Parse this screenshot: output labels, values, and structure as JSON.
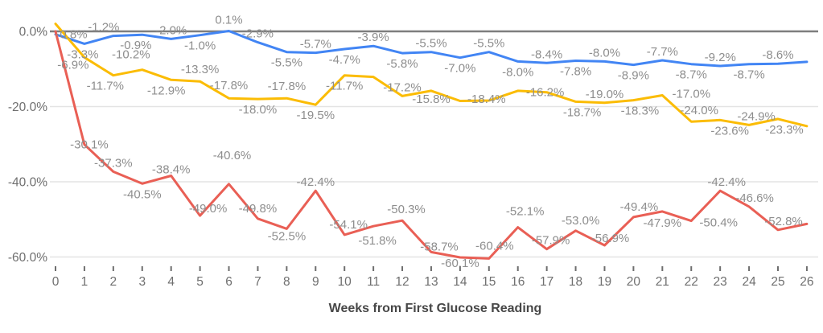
{
  "chart_data": {
    "type": "line",
    "title": "",
    "xlabel": "Weeks from First Glucose Reading",
    "ylabel": "",
    "legend": "none",
    "grid": "horizontal",
    "x_range": [
      0,
      26
    ],
    "ylim": [
      -64,
      3
    ],
    "x_ticks": [
      "0",
      "1",
      "2",
      "3",
      "4",
      "5",
      "6",
      "7",
      "8",
      "9",
      "10",
      "11",
      "12",
      "13",
      "14",
      "15",
      "16",
      "17",
      "18",
      "19",
      "20",
      "21",
      "22",
      "23",
      "24",
      "25",
      "26"
    ],
    "y_ticks": [
      {
        "label": "0.0%",
        "value": 0
      },
      {
        "label": "-20.0%",
        "value": -20
      },
      {
        "label": "-40.0%",
        "value": -40
      },
      {
        "label": "-60.0%",
        "value": -60
      }
    ],
    "series": [
      {
        "name": "blue-series",
        "color": "#4285F4",
        "values": [
          -0.8,
          -3.3,
          -1.2,
          -0.9,
          -2.0,
          -1.0,
          0.1,
          -2.9,
          -5.5,
          -5.7,
          -4.7,
          -3.9,
          -5.8,
          -5.5,
          -7.0,
          -5.5,
          -8.0,
          -8.4,
          -7.8,
          -8.0,
          -8.9,
          -7.7,
          -8.7,
          -9.2,
          -8.7,
          -8.6,
          -8.1
        ],
        "labels": [
          {
            "w": 0,
            "t": "-0.8%",
            "p": "o",
            "dx": 20
          },
          {
            "w": 1,
            "t": "-3.3%",
            "p": "b",
            "dx": -2
          },
          {
            "w": 2,
            "t": "-1.2%",
            "p": "a",
            "dx": -12
          },
          {
            "w": 3,
            "t": "-0.9%",
            "p": "b",
            "dx": -8
          },
          {
            "w": 4,
            "t": "-2.0%",
            "p": "a"
          },
          {
            "w": 5,
            "t": "-1.0%",
            "p": "b"
          },
          {
            "w": 6,
            "t": "0.1%",
            "p": "a",
            "dy": -3
          },
          {
            "w": 7,
            "t": "-2.9%",
            "p": "a"
          },
          {
            "w": 8,
            "t": "-5.5%",
            "p": "b"
          },
          {
            "w": 9,
            "t": "-5.7%",
            "p": "a"
          },
          {
            "w": 10,
            "t": "-4.7%",
            "p": "b"
          },
          {
            "w": 11,
            "t": "-3.9%",
            "p": "a"
          },
          {
            "w": 12,
            "t": "-5.8%",
            "p": "b"
          },
          {
            "w": 13,
            "t": "-5.5%",
            "p": "a"
          },
          {
            "w": 14,
            "t": "-7.0%",
            "p": "b"
          },
          {
            "w": 15,
            "t": "-5.5%",
            "p": "a"
          },
          {
            "w": 16,
            "t": "-8.0%",
            "p": "b"
          },
          {
            "w": 17,
            "t": "-8.4%",
            "p": "a"
          },
          {
            "w": 18,
            "t": "-7.8%",
            "p": "b"
          },
          {
            "w": 19,
            "t": "-8.0%",
            "p": "a"
          },
          {
            "w": 20,
            "t": "-8.9%",
            "p": "b"
          },
          {
            "w": 21,
            "t": "-7.7%",
            "p": "a"
          },
          {
            "w": 22,
            "t": "-8.7%",
            "p": "b"
          },
          {
            "w": 23,
            "t": "-9.2%",
            "p": "a"
          },
          {
            "w": 24,
            "t": "-8.7%",
            "p": "b"
          },
          {
            "w": 25,
            "t": "-8.6%",
            "p": "a"
          }
        ]
      },
      {
        "name": "yellow-series",
        "color": "#FBBC04",
        "values": [
          2.0,
          -6.9,
          -11.7,
          -10.2,
          -12.9,
          -13.3,
          -17.8,
          -18.0,
          -17.8,
          -19.5,
          -11.7,
          -12.1,
          -17.2,
          -15.8,
          -18.5,
          -18.4,
          -15.8,
          -16.2,
          -18.7,
          -19.0,
          -18.3,
          -17.0,
          -24.0,
          -23.6,
          -24.9,
          -23.3,
          -25.2
        ],
        "labels": [
          {
            "w": 1,
            "t": "-6.9%",
            "p": "b",
            "dx": -14,
            "dy": -4
          },
          {
            "w": 2,
            "t": "-11.7%",
            "p": "b",
            "dx": -10
          },
          {
            "w": 3,
            "t": "-10.2%",
            "p": "a",
            "dx": -14,
            "dy": -8
          },
          {
            "w": 4,
            "t": "-12.9%",
            "p": "b",
            "dx": -6
          },
          {
            "w": 5,
            "t": "-13.3%",
            "p": "a",
            "dy": -4
          },
          {
            "w": 6,
            "t": "-17.8%",
            "p": "a",
            "dy": -5
          },
          {
            "w": 7,
            "t": "-18.0%",
            "p": "b"
          },
          {
            "w": 8,
            "t": "-17.8%",
            "p": "a",
            "dy": -4
          },
          {
            "w": 9,
            "t": "-19.5%",
            "p": "b"
          },
          {
            "w": 10,
            "t": "-11.7%",
            "p": "b"
          },
          {
            "w": 12,
            "t": "-17.2%",
            "p": "a"
          },
          {
            "w": 13,
            "t": "-15.8%",
            "p": "b",
            "dy": -3
          },
          {
            "w": 15,
            "t": "-18.4%",
            "p": "o",
            "dx": -3,
            "dy": -2
          },
          {
            "w": 17,
            "t": "-16.2%",
            "p": "o",
            "dx": -2
          },
          {
            "w": 18,
            "t": "-18.7%",
            "p": "b",
            "dx": 8
          },
          {
            "w": 19,
            "t": "-19.0%",
            "p": "a"
          },
          {
            "w": 20,
            "t": "-18.3%",
            "p": "b",
            "dx": 8
          },
          {
            "w": 21,
            "t": "-17.0%",
            "p": "o",
            "dx": 36,
            "dy": -2
          },
          {
            "w": 22,
            "t": "-24.0%",
            "p": "a",
            "dx": 10,
            "dy": -3
          },
          {
            "w": 23,
            "t": "-23.6%",
            "p": "b",
            "dx": 12
          },
          {
            "w": 24,
            "t": "-24.9%",
            "p": "a",
            "dx": 9
          },
          {
            "w": 25,
            "t": "-23.3%",
            "p": "b",
            "dx": 8
          }
        ]
      },
      {
        "name": "red-series",
        "color": "#E95F55",
        "values": [
          0.0,
          -30.1,
          -37.3,
          -40.5,
          -38.4,
          -49.0,
          -40.6,
          -49.8,
          -52.5,
          -42.4,
          -54.1,
          -51.8,
          -50.3,
          -58.7,
          -60.1,
          -60.4,
          -52.1,
          -57.9,
          -53.0,
          -56.9,
          -49.4,
          -47.9,
          -50.4,
          -42.4,
          -46.6,
          -52.8,
          -51.2
        ],
        "labels": [
          {
            "w": 1,
            "t": "-30.1%",
            "p": "o",
            "dx": 6
          },
          {
            "w": 2,
            "t": "-37.3%",
            "p": "a"
          },
          {
            "w": 3,
            "t": "-40.5%",
            "p": "b"
          },
          {
            "w": 4,
            "t": "-38.4%",
            "p": "a",
            "dy": 3
          },
          {
            "w": 5,
            "t": "-49.0%",
            "p": "a",
            "dx": 10,
            "dy": 2
          },
          {
            "w": 6,
            "t": "-40.6%",
            "p": "a",
            "dx": 4,
            "dy": -25
          },
          {
            "w": 7,
            "t": "-49.8%",
            "p": "a",
            "dy": -2
          },
          {
            "w": 8,
            "t": "-52.5%",
            "p": "b",
            "dy": -4
          },
          {
            "w": 9,
            "t": "-42.4%",
            "p": "a"
          },
          {
            "w": 10,
            "t": "-54.1%",
            "p": "a",
            "dx": 5,
            "dy": -2
          },
          {
            "w": 11,
            "t": "-51.8%",
            "p": "b",
            "dx": 5,
            "dy": 5
          },
          {
            "w": 12,
            "t": "-50.3%",
            "p": "a",
            "dx": 5,
            "dy": -3
          },
          {
            "w": 13,
            "t": "-58.7%",
            "p": "a",
            "dx": 10,
            "dy": 4
          },
          {
            "w": 14,
            "t": "-60.1%",
            "p": "b",
            "dy": -6
          },
          {
            "w": 15,
            "t": "-60.4%",
            "p": "a",
            "dx": 7,
            "dy": -5
          },
          {
            "w": 16,
            "t": "-52.1%",
            "p": "a",
            "dx": 9,
            "dy": -9
          },
          {
            "w": 17,
            "t": "-57.9%",
            "p": "a",
            "dx": 5
          },
          {
            "w": 18,
            "t": "-53.0%",
            "p": "a",
            "dx": 6,
            "dy": -2
          },
          {
            "w": 19,
            "t": "-56.9%",
            "p": "a",
            "dx": 7,
            "dy": 2
          },
          {
            "w": 20,
            "t": "-49.4%",
            "p": "a",
            "dx": 7,
            "dy": -2
          },
          {
            "w": 21,
            "t": "-47.9%",
            "p": "b",
            "dy": 1
          },
          {
            "w": 22,
            "t": "-50.4%",
            "p": "o",
            "dx": 34,
            "dy": 2
          },
          {
            "w": 23,
            "t": "-42.4%",
            "p": "a",
            "dx": 8
          },
          {
            "w": 24,
            "t": "-46.6%",
            "p": "a",
            "dx": 7
          },
          {
            "w": 25,
            "t": "-52.8%",
            "p": "a",
            "dx": 7
          }
        ]
      }
    ]
  }
}
